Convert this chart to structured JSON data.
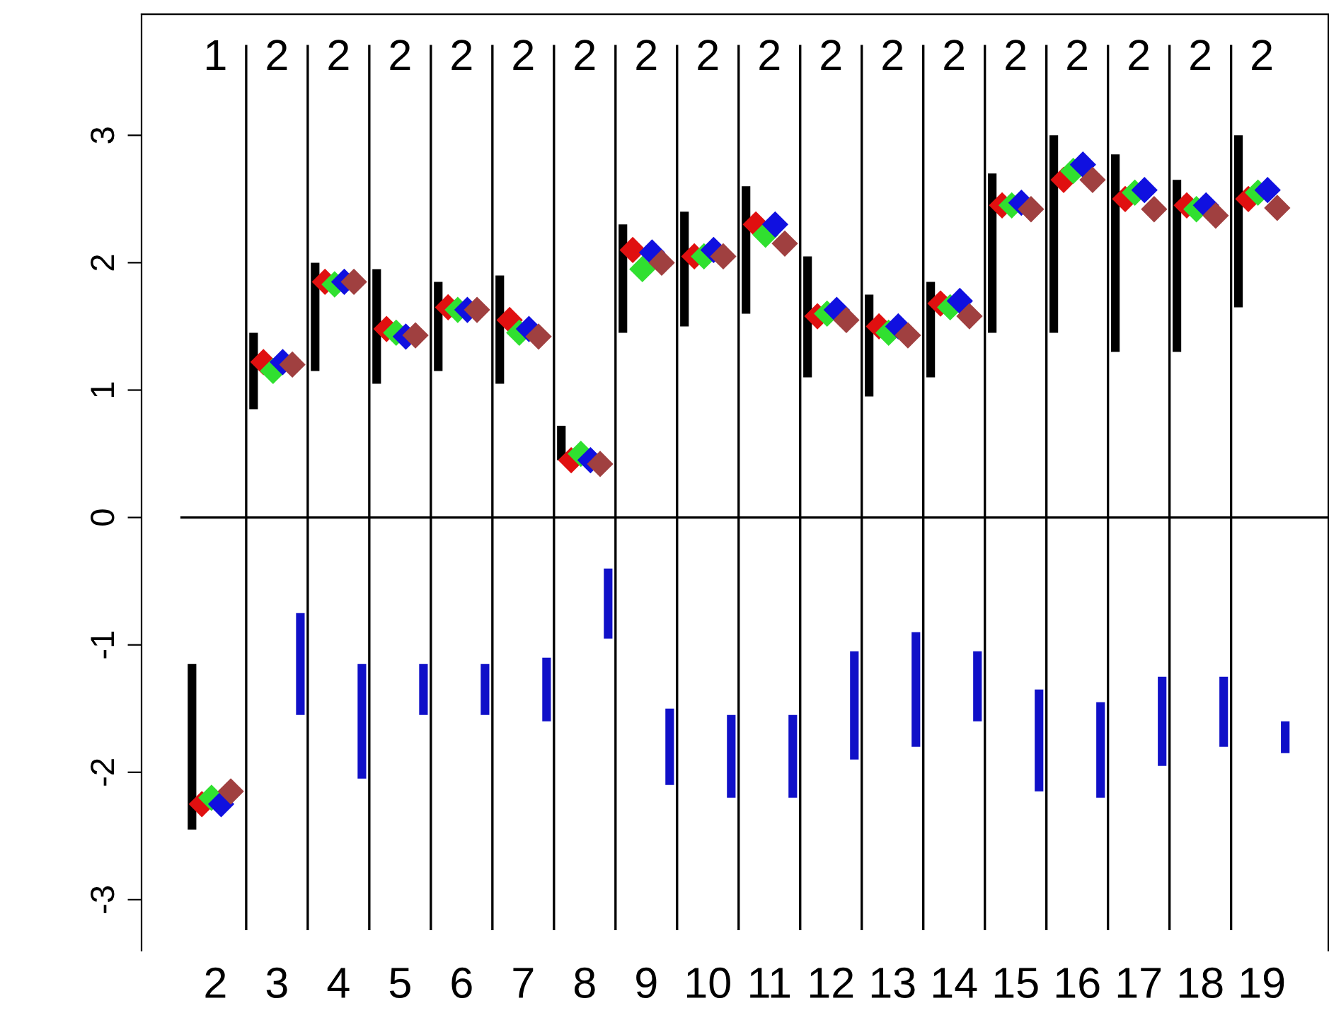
{
  "chart_data": {
    "type": "scatter",
    "categories": [
      "2",
      "3",
      "4",
      "5",
      "6",
      "7",
      "8",
      "9",
      "10",
      "11",
      "12",
      "13",
      "14",
      "15",
      "16",
      "17",
      "18",
      "19"
    ],
    "annotations": [
      "1",
      "2",
      "2",
      "2",
      "2",
      "2",
      "2",
      "2",
      "2",
      "2",
      "2",
      "2",
      "2",
      "2",
      "2",
      "2",
      "2",
      "2"
    ],
    "ylim": [
      -3.4,
      3.95
    ],
    "yticks": [
      -3,
      -2,
      -1,
      0,
      1,
      2,
      3
    ],
    "marker": "diamond",
    "ref_lines": [
      {
        "axis": "y",
        "value": 0,
        "color": "#000000"
      }
    ],
    "series": [
      {
        "type": "bar",
        "color": "#000000",
        "base": [
          -2.45,
          0.85,
          1.15,
          1.05,
          1.15,
          1.05,
          0.45,
          1.45,
          1.5,
          1.6,
          1.1,
          0.95,
          1.1,
          1.45,
          1.45,
          1.3,
          1.3,
          1.65
        ],
        "values": [
          1.3,
          0.6,
          0.85,
          0.9,
          0.7,
          0.85,
          0.27,
          0.85,
          0.9,
          1.0,
          0.95,
          0.8,
          0.75,
          1.25,
          1.55,
          1.55,
          1.35,
          1.35
        ]
      },
      {
        "type": "bar",
        "color": "#1010c8",
        "base": [
          null,
          -1.55,
          -2.05,
          -1.55,
          -1.55,
          -1.6,
          -0.95,
          -2.1,
          -2.2,
          -2.2,
          -1.9,
          -1.8,
          -1.6,
          -2.15,
          -2.2,
          -1.95,
          -1.8,
          -1.85
        ],
        "values": [
          null,
          0.8,
          0.9,
          0.4,
          0.4,
          0.5,
          0.55,
          0.6,
          0.65,
          0.65,
          0.85,
          0.9,
          0.55,
          0.8,
          0.75,
          0.7,
          0.55,
          0.25
        ]
      },
      {
        "color": "#e01010",
        "values": [
          -2.25,
          1.22,
          1.85,
          1.48,
          1.65,
          1.55,
          0.45,
          2.1,
          2.05,
          2.3,
          1.58,
          1.5,
          1.68,
          2.45,
          2.65,
          2.5,
          2.45,
          2.5
        ]
      },
      {
        "color": "#30e030",
        "values": [
          -2.2,
          1.15,
          1.83,
          1.45,
          1.63,
          1.45,
          0.5,
          1.95,
          2.05,
          2.22,
          1.6,
          1.45,
          1.65,
          2.45,
          2.72,
          2.55,
          2.42,
          2.55
        ]
      },
      {
        "color": "#1010e0",
        "values": [
          -2.25,
          1.22,
          1.85,
          1.42,
          1.63,
          1.48,
          0.45,
          2.08,
          2.1,
          2.3,
          1.63,
          1.5,
          1.7,
          2.47,
          2.77,
          2.57,
          2.45,
          2.57
        ]
      },
      {
        "color": "#a04040",
        "values": [
          -2.15,
          1.2,
          1.85,
          1.43,
          1.63,
          1.42,
          0.42,
          2.0,
          2.05,
          2.15,
          1.55,
          1.43,
          1.58,
          2.42,
          2.65,
          2.42,
          2.37,
          2.43
        ]
      }
    ]
  }
}
